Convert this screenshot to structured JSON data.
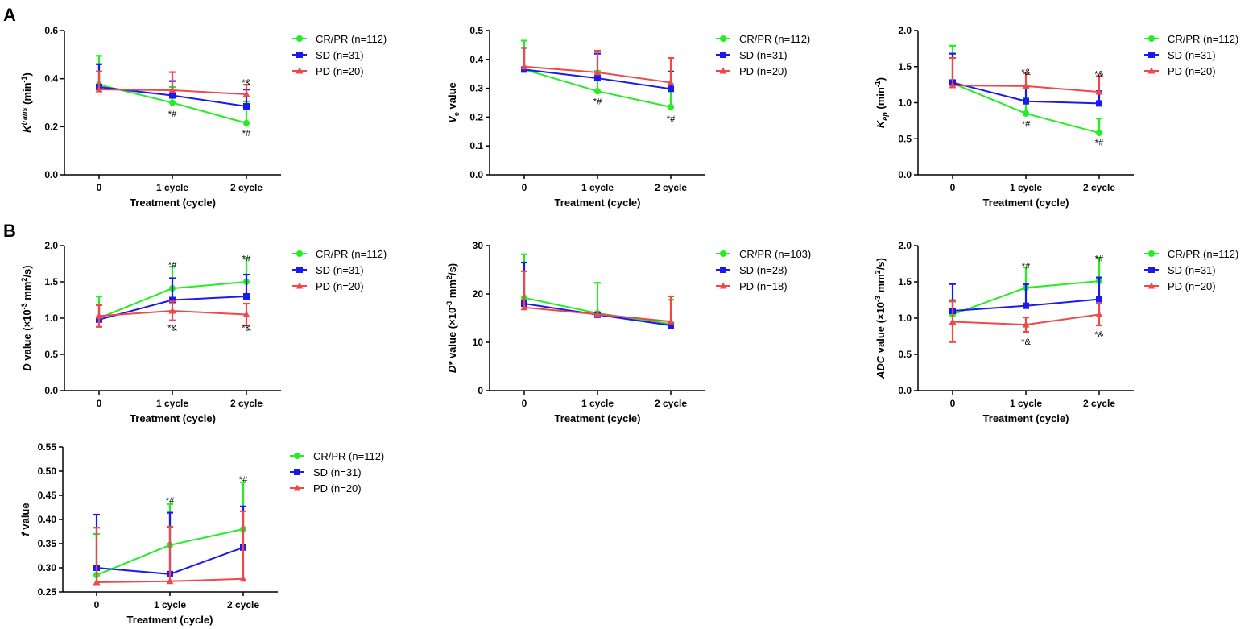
{
  "panel_labels": [
    "A",
    "B"
  ],
  "colors": {
    "CR/PR": "#22ee22",
    "SD": "#1a1aee",
    "PD": "#f04848"
  },
  "chart_data": [
    {
      "type": "line",
      "title": "",
      "ylabel_parts": [
        "K",
        "trans",
        " (min",
        "-1",
        ")"
      ],
      "xlabel": "Treatment (cycle)",
      "categories": [
        "0",
        "1 cycle",
        "2 cycle"
      ],
      "ylim": [
        0,
        0.6
      ],
      "yticks": [
        "0.0",
        "0.2",
        "0.4",
        "0.6"
      ],
      "series": [
        {
          "name": "CR/PR (n=112)",
          "key": "CR/PR",
          "values": [
            0.375,
            0.3,
            0.215
          ],
          "err": [
            0.12,
            0.065,
            0.09
          ],
          "errdir": "up"
        },
        {
          "name": "SD (n=31)",
          "key": "SD",
          "values": [
            0.365,
            0.33,
            0.285
          ],
          "err": [
            0.095,
            0.06,
            0.07
          ],
          "errdir": "up"
        },
        {
          "name": "PD (n=20)",
          "key": "PD",
          "values": [
            0.355,
            0.352,
            0.335
          ],
          "err": [
            0.075,
            0.075,
            0.04
          ],
          "errdir": "up"
        }
      ],
      "annotations": [
        {
          "text": "*#",
          "cat": 1,
          "y": 0.255
        },
        {
          "text": "*&",
          "cat": 2,
          "y": 0.385
        },
        {
          "text": "*#",
          "cat": 2,
          "y": 0.175
        }
      ]
    },
    {
      "type": "line",
      "title": "",
      "ylabel_parts": [
        "V",
        "e",
        " value"
      ],
      "xlabel": "Treatment (cycle)",
      "categories": [
        "0",
        "1 cycle",
        "2 cycle"
      ],
      "ylim": [
        0,
        0.5
      ],
      "yticks": [
        "0.0",
        "0.1",
        "0.2",
        "0.3",
        "0.4",
        "0.5"
      ],
      "series": [
        {
          "name": "CR/PR (n=112)",
          "key": "CR/PR",
          "values": [
            0.365,
            0.29,
            0.235
          ],
          "err": [
            0.1,
            0.07,
            0.065
          ],
          "errdir": "up"
        },
        {
          "name": "SD (n=31)",
          "key": "SD",
          "values": [
            0.365,
            0.335,
            0.298
          ],
          "err": [
            0.075,
            0.085,
            0.06
          ],
          "errdir": "up"
        },
        {
          "name": "PD (n=20)",
          "key": "PD",
          "values": [
            0.375,
            0.355,
            0.32
          ],
          "err": [
            0.065,
            0.075,
            0.085
          ],
          "errdir": "up"
        }
      ],
      "annotations": [
        {
          "text": "*#",
          "cat": 1,
          "y": 0.255
        },
        {
          "text": "*#",
          "cat": 2,
          "y": 0.195
        }
      ]
    },
    {
      "type": "line",
      "title": "",
      "ylabel_parts": [
        "K",
        "ep",
        " (min",
        "-1",
        ")"
      ],
      "xlabel": "Treatment (cycle)",
      "categories": [
        "0",
        "1 cycle",
        "2 cycle"
      ],
      "ylim": [
        0,
        2.0
      ],
      "yticks": [
        "0.0",
        "0.5",
        "1.0",
        "1.5",
        "2.0"
      ],
      "series": [
        {
          "name": "CR/PR (n=112)",
          "key": "CR/PR",
          "values": [
            1.27,
            0.85,
            0.58
          ],
          "err": [
            0.52,
            0.22,
            0.2
          ],
          "errdir": "up"
        },
        {
          "name": "SD (n=31)",
          "key": "SD",
          "values": [
            1.28,
            1.02,
            0.99
          ],
          "err": [
            0.4,
            0.2,
            0.17
          ],
          "errdir": "up"
        },
        {
          "name": "PD (n=20)",
          "key": "PD",
          "values": [
            1.24,
            1.23,
            1.15
          ],
          "err": [
            0.38,
            0.18,
            0.22
          ],
          "errdir": "up"
        }
      ],
      "annotations": [
        {
          "text": "*&",
          "cat": 1,
          "y": 1.43
        },
        {
          "text": "*#",
          "cat": 1,
          "y": 0.71
        },
        {
          "text": "*&",
          "cat": 2,
          "y": 1.4
        },
        {
          "text": "*#",
          "cat": 2,
          "y": 0.45
        }
      ]
    },
    {
      "type": "line",
      "title": "",
      "ylabel_parts": [
        "D",
        "",
        " value (×10",
        "-3",
        " mm",
        "2",
        "/s)"
      ],
      "xlabel": "Treatment (cycle)",
      "categories": [
        "0",
        "1 cycle",
        "2 cycle"
      ],
      "ylim": [
        0,
        2.0
      ],
      "yticks": [
        "0.0",
        "0.5",
        "1.0",
        "1.5",
        "2.0"
      ],
      "series": [
        {
          "name": "CR/PR (n=112)",
          "key": "CR/PR",
          "values": [
            1.0,
            1.41,
            1.5
          ],
          "err": [
            0.3,
            0.3,
            0.32
          ],
          "errdir": "up"
        },
        {
          "name": "SD (n=31)",
          "key": "SD",
          "values": [
            0.98,
            1.25,
            1.3
          ],
          "err": [
            0.2,
            0.3,
            0.3
          ],
          "errdir": "up"
        },
        {
          "name": "PD (n=20)",
          "key": "PD",
          "values": [
            1.03,
            1.1,
            1.05
          ],
          "err": [
            0.15,
            0.13,
            0.15
          ],
          "errdir": "both"
        }
      ],
      "annotations": [
        {
          "text": "*#",
          "cat": 1,
          "y": 1.74
        },
        {
          "text": "*#",
          "cat": 2,
          "y": 1.83
        },
        {
          "text": "*&",
          "cat": 1,
          "y": 0.87
        },
        {
          "text": "*&",
          "cat": 2,
          "y": 0.87
        }
      ]
    },
    {
      "type": "line",
      "title": "",
      "ylabel_parts": [
        "D*",
        "",
        " value (×10",
        "-3",
        " mm",
        "2",
        "/s)"
      ],
      "xlabel": "Treatment (cycle)",
      "categories": [
        "0",
        "1 cycle",
        "2 cycle"
      ],
      "ylim": [
        0,
        30
      ],
      "yticks": [
        "0",
        "10",
        "20",
        "30"
      ],
      "series": [
        {
          "name": "CR/PR (n=103)",
          "key": "CR/PR",
          "values": [
            19.2,
            16.0,
            13.8
          ],
          "err": [
            9.0,
            6.3,
            5.0
          ],
          "errdir": "up"
        },
        {
          "name": "SD (n=28)",
          "key": "SD",
          "values": [
            18.0,
            15.7,
            13.5
          ],
          "err": [
            8.5,
            0,
            0
          ],
          "errdir": "up"
        },
        {
          "name": "PD (n=18)",
          "key": "PD",
          "values": [
            17.2,
            15.8,
            14.3
          ],
          "err": [
            7.5,
            0,
            5.2
          ],
          "errdir": "up"
        }
      ],
      "annotations": []
    },
    {
      "type": "line",
      "title": "",
      "ylabel_parts": [
        "ADC",
        "",
        " value (×10",
        "-3",
        " mm",
        "2",
        "/s)"
      ],
      "xlabel": "Treatment (cycle)",
      "categories": [
        "0",
        "1 cycle",
        "2 cycle"
      ],
      "ylim": [
        0,
        2.0
      ],
      "yticks": [
        "0.0",
        "0.5",
        "1.0",
        "1.5",
        "2.0"
      ],
      "series": [
        {
          "name": "CR/PR (n=112)",
          "key": "CR/PR",
          "values": [
            1.05,
            1.42,
            1.51
          ],
          "err": [
            0.2,
            0.28,
            0.32
          ],
          "errdir": "up"
        },
        {
          "name": "SD (n=31)",
          "key": "SD",
          "values": [
            1.1,
            1.17,
            1.26
          ],
          "err": [
            0.37,
            0.3,
            0.3
          ],
          "errdir": "up"
        },
        {
          "name": "PD (n=20)",
          "key": "PD",
          "values": [
            0.95,
            0.91,
            1.05
          ],
          "err": [
            0.28,
            0.1,
            0.15
          ],
          "errdir": "both"
        }
      ],
      "annotations": [
        {
          "text": "*#",
          "cat": 1,
          "y": 1.72
        },
        {
          "text": "*#",
          "cat": 2,
          "y": 1.83
        },
        {
          "text": "*&",
          "cat": 1,
          "y": 0.68
        },
        {
          "text": "*&",
          "cat": 2,
          "y": 0.78
        }
      ]
    },
    {
      "type": "line",
      "title": "",
      "ylabel_parts": [
        "f",
        "",
        " value"
      ],
      "xlabel": "Treatment (cycle)",
      "categories": [
        "0",
        "1 cycle",
        "2 cycle"
      ],
      "ylim": [
        0.25,
        0.55
      ],
      "yticks": [
        "0.25",
        "0.30",
        "0.35",
        "0.40",
        "0.45",
        "0.50",
        "0.55"
      ],
      "series": [
        {
          "name": "CR/PR (n=112)",
          "key": "CR/PR",
          "values": [
            0.285,
            0.347,
            0.38
          ],
          "err": [
            0.085,
            0.085,
            0.097
          ],
          "errdir": "up"
        },
        {
          "name": "SD (n=31)",
          "key": "SD",
          "values": [
            0.3,
            0.287,
            0.342
          ],
          "err": [
            0.11,
            0.127,
            0.085
          ],
          "errdir": "up"
        },
        {
          "name": "PD (n=20)",
          "key": "PD",
          "values": [
            0.27,
            0.272,
            0.277
          ],
          "err": [
            0.113,
            0.113,
            0.14
          ],
          "errdir": "up"
        }
      ],
      "annotations": [
        {
          "text": "*#",
          "cat": 1,
          "y": 0.44
        },
        {
          "text": "*#",
          "cat": 2,
          "y": 0.483
        }
      ]
    }
  ]
}
